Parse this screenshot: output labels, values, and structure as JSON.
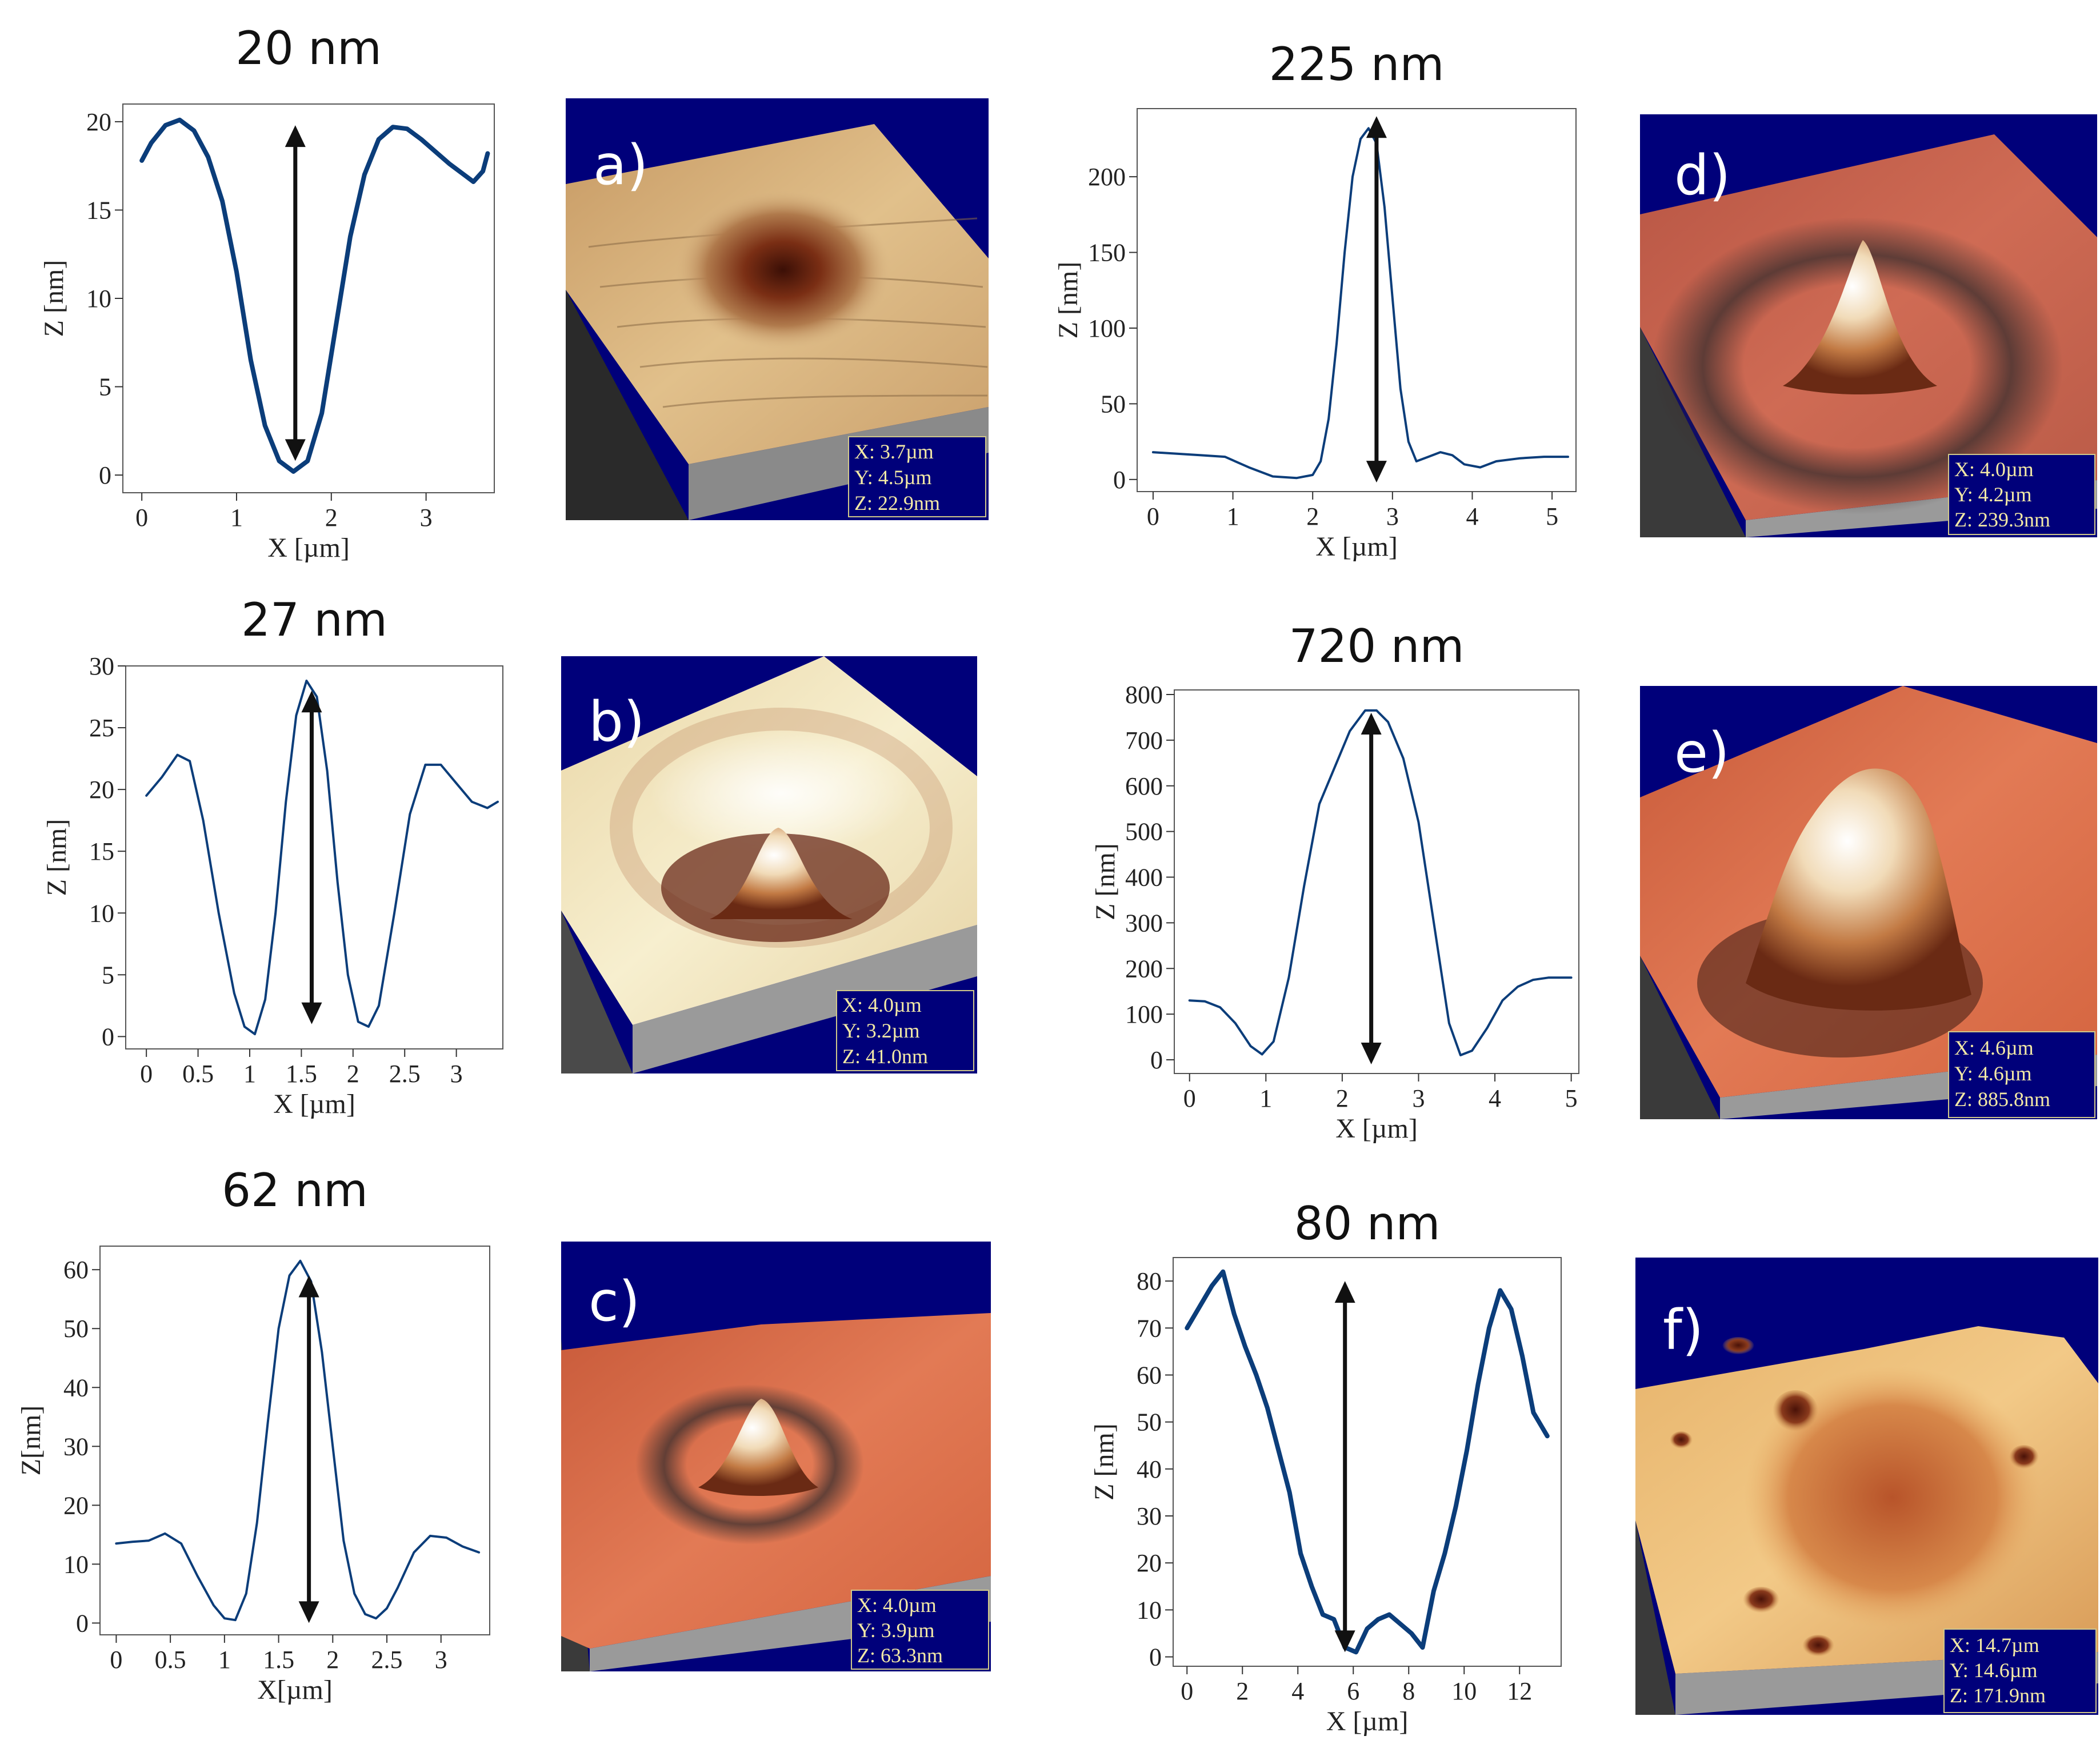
{
  "colors": {
    "curve": "#0b3d7a",
    "arrow": "#111111",
    "panel_bg": "#00007a",
    "frame": "#555555"
  },
  "chart_data": [
    {
      "type": "line",
      "title": "20 nm",
      "xlabel": "X [µm]",
      "ylabel": "Z [nm]",
      "xlim": [
        -0.2,
        3.72
      ],
      "ylim": [
        -1,
        21
      ],
      "xticks": [
        0,
        1,
        2,
        3
      ],
      "xtick_labels": [
        "0",
        "1",
        "2",
        "3"
      ],
      "yticks": [
        0,
        5,
        10,
        15,
        20
      ],
      "ytick_labels": [
        "0",
        "5",
        "10",
        "15",
        "20"
      ],
      "x": [
        0,
        0.1,
        0.25,
        0.4,
        0.55,
        0.7,
        0.85,
        1.0,
        1.15,
        1.3,
        1.45,
        1.6,
        1.75,
        1.9,
        2.05,
        2.2,
        2.35,
        2.5,
        2.65,
        2.8,
        2.95,
        3.1,
        3.25,
        3.4,
        3.5,
        3.6,
        3.65
      ],
      "y": [
        17.8,
        18.8,
        19.8,
        20.1,
        19.5,
        18.0,
        15.5,
        11.5,
        6.5,
        2.8,
        0.8,
        0.2,
        0.8,
        3.5,
        8.5,
        13.5,
        17.0,
        19.0,
        19.7,
        19.6,
        19.0,
        18.3,
        17.6,
        17.0,
        16.6,
        17.2,
        18.2
      ],
      "arrow": {
        "x": 1.62,
        "y_top": 19.8,
        "y_bottom": 0.8,
        "double": true
      },
      "stroke_width": 8
    },
    {
      "type": "line",
      "title": "27 nm",
      "xlabel": "X [µm]",
      "ylabel": "Z [nm]",
      "xlim": [
        -0.2,
        3.45
      ],
      "ylim": [
        -1,
        30
      ],
      "xticks": [
        0,
        0.5,
        1,
        1.5,
        2,
        2.5,
        3
      ],
      "xtick_labels": [
        "0",
        "0.5",
        "1",
        "1.5",
        "2",
        "2.5",
        "3"
      ],
      "yticks": [
        0,
        5,
        10,
        15,
        20,
        25,
        30
      ],
      "ytick_labels": [
        "0",
        "5",
        "10",
        "15",
        "20",
        "25",
        "30"
      ],
      "x": [
        0,
        0.15,
        0.3,
        0.42,
        0.55,
        0.7,
        0.85,
        0.95,
        1.05,
        1.15,
        1.25,
        1.35,
        1.45,
        1.55,
        1.65,
        1.75,
        1.85,
        1.95,
        2.05,
        2.15,
        2.25,
        2.4,
        2.55,
        2.7,
        2.85,
        3.0,
        3.15,
        3.3,
        3.4
      ],
      "y": [
        19.5,
        21.0,
        22.8,
        22.3,
        17.5,
        10.0,
        3.5,
        0.8,
        0.2,
        3.0,
        10.0,
        19.0,
        26.0,
        28.8,
        27.5,
        21.5,
        12.5,
        5.0,
        1.2,
        0.8,
        2.5,
        10.0,
        18.0,
        22.0,
        22.0,
        20.5,
        19.0,
        18.5,
        19.0
      ],
      "arrow": {
        "x": 1.6,
        "y_top": 28.0,
        "y_bottom": 1.0,
        "double": true
      },
      "stroke_width": 4
    },
    {
      "type": "line",
      "title": "62 nm",
      "xlabel": "X[µm]",
      "ylabel": "Z[nm]",
      "xlim": [
        -0.15,
        3.45
      ],
      "ylim": [
        -2,
        64
      ],
      "xticks": [
        0,
        0.5,
        1,
        1.5,
        2,
        2.5,
        3
      ],
      "xtick_labels": [
        "0",
        "0.5",
        "1",
        "1.5",
        "2",
        "2.5",
        "3"
      ],
      "yticks": [
        0,
        10,
        20,
        30,
        40,
        50,
        60
      ],
      "ytick_labels": [
        "0",
        "10",
        "20",
        "30",
        "40",
        "50",
        "60"
      ],
      "x": [
        0,
        0.15,
        0.3,
        0.45,
        0.6,
        0.75,
        0.9,
        1.0,
        1.1,
        1.2,
        1.3,
        1.4,
        1.5,
        1.6,
        1.7,
        1.8,
        1.9,
        2.0,
        2.1,
        2.2,
        2.3,
        2.4,
        2.5,
        2.6,
        2.75,
        2.9,
        3.05,
        3.2,
        3.35
      ],
      "y": [
        13.5,
        13.8,
        14.0,
        15.2,
        13.5,
        8.0,
        3.0,
        0.8,
        0.5,
        5.0,
        17.0,
        34.0,
        50.0,
        59.0,
        61.5,
        58.0,
        46.0,
        30.0,
        14.0,
        5.0,
        1.5,
        0.8,
        2.5,
        6.0,
        12.0,
        14.8,
        14.5,
        13.0,
        12.0
      ],
      "arrow": {
        "x": 1.78,
        "y_top": 59.0,
        "y_bottom": 0.0,
        "double": true
      },
      "stroke_width": 4
    },
    {
      "type": "line",
      "title": "225 nm",
      "xlabel": "X [µm]",
      "ylabel": "Z [nm]",
      "xlim": [
        -0.2,
        5.3
      ],
      "ylim": [
        -8,
        245
      ],
      "xticks": [
        0,
        1,
        2,
        3,
        4,
        5
      ],
      "xtick_labels": [
        "0",
        "1",
        "2",
        "3",
        "4",
        "5"
      ],
      "yticks": [
        0,
        50,
        100,
        150,
        200
      ],
      "ytick_labels": [
        "0",
        "50",
        "100",
        "150",
        "200"
      ],
      "x": [
        0,
        0.3,
        0.6,
        0.9,
        1.2,
        1.5,
        1.8,
        2.0,
        2.1,
        2.2,
        2.3,
        2.4,
        2.5,
        2.6,
        2.7,
        2.8,
        2.9,
        3.0,
        3.1,
        3.2,
        3.3,
        3.45,
        3.6,
        3.75,
        3.9,
        4.1,
        4.3,
        4.6,
        4.9,
        5.2
      ],
      "y": [
        18,
        17,
        16,
        15,
        8,
        2,
        1,
        3,
        12,
        40,
        90,
        150,
        200,
        225,
        232,
        222,
        180,
        120,
        60,
        25,
        12,
        15,
        18,
        16,
        10,
        8,
        12,
        14,
        15,
        15
      ],
      "arrow": {
        "x": 2.8,
        "y_top": 240,
        "y_bottom": -2,
        "double": true
      },
      "stroke_width": 4
    },
    {
      "type": "line",
      "title": "720 nm",
      "xlabel": "X [µm]",
      "ylabel": "Z [nm]",
      "xlim": [
        -0.2,
        5.1
      ],
      "ylim": [
        -30,
        810
      ],
      "xticks": [
        0,
        1,
        2,
        3,
        4,
        5
      ],
      "xtick_labels": [
        "0",
        "1",
        "2",
        "3",
        "4",
        "5"
      ],
      "yticks": [
        0,
        100,
        200,
        300,
        400,
        500,
        600,
        700,
        800
      ],
      "ytick_labels": [
        "0",
        "100",
        "200",
        "300",
        "400",
        "500",
        "600",
        "700",
        "800"
      ],
      "x": [
        0,
        0.2,
        0.4,
        0.6,
        0.8,
        0.95,
        1.1,
        1.3,
        1.5,
        1.7,
        1.9,
        2.1,
        2.3,
        2.45,
        2.6,
        2.8,
        3.0,
        3.2,
        3.4,
        3.55,
        3.7,
        3.9,
        4.1,
        4.3,
        4.5,
        4.7,
        4.9,
        5.0
      ],
      "y": [
        130,
        128,
        115,
        80,
        30,
        12,
        40,
        180,
        380,
        560,
        640,
        720,
        765,
        765,
        740,
        660,
        520,
        300,
        80,
        10,
        20,
        70,
        130,
        160,
        175,
        180,
        180,
        180
      ],
      "arrow": {
        "x": 2.38,
        "y_top": 760,
        "y_bottom": -10,
        "double": true
      },
      "stroke_width": 4
    },
    {
      "type": "line",
      "title": "80 nm",
      "xlabel": "X [µm]",
      "ylabel": "Z [nm]",
      "xlim": [
        -0.5,
        13.5
      ],
      "ylim": [
        -2,
        85
      ],
      "xticks": [
        0,
        2,
        4,
        6,
        8,
        10,
        12
      ],
      "xtick_labels": [
        "0",
        "2",
        "4",
        "6",
        "8",
        "10",
        "12"
      ],
      "yticks": [
        0,
        10,
        20,
        30,
        40,
        50,
        60,
        70,
        80
      ],
      "ytick_labels": [
        "0",
        "10",
        "20",
        "30",
        "40",
        "50",
        "60",
        "70",
        "80"
      ],
      "x": [
        0,
        0.5,
        0.9,
        1.3,
        1.7,
        2.1,
        2.5,
        2.9,
        3.3,
        3.7,
        4.1,
        4.5,
        4.9,
        5.3,
        5.7,
        6.1,
        6.5,
        6.9,
        7.3,
        7.7,
        8.1,
        8.5,
        8.9,
        9.3,
        9.7,
        10.1,
        10.5,
        10.9,
        11.3,
        11.7,
        12.1,
        12.5,
        12.8,
        13.0
      ],
      "y": [
        70,
        75,
        79,
        82,
        73,
        66,
        60,
        53,
        44,
        35,
        22,
        15,
        9,
        8,
        2,
        1,
        6,
        8,
        9,
        7,
        5,
        2,
        14,
        22,
        32,
        44,
        58,
        70,
        78,
        74,
        64,
        52,
        49,
        47
      ],
      "arrow": {
        "x": 5.7,
        "y_top": 80,
        "y_bottom": 1,
        "double": true
      },
      "stroke_width": 8
    }
  ],
  "panels": [
    {
      "letter": "a)",
      "x": "X: 3.7µm",
      "y": "Y: 4.5µm",
      "z": "Z: 22.9nm"
    },
    {
      "letter": "b)",
      "x": "X: 4.0µm",
      "y": "Y: 3.2µm",
      "z": "Z: 41.0nm"
    },
    {
      "letter": "c)",
      "x": "X: 4.0µm",
      "y": "Y: 3.9µm",
      "z": "Z: 63.3nm"
    },
    {
      "letter": "d)",
      "x": "X: 4.0µm",
      "y": "Y: 4.2µm",
      "z": "Z: 239.3nm"
    },
    {
      "letter": "e)",
      "x": "X: 4.6µm",
      "y": "Y: 4.6µm",
      "z": "Z: 885.8nm"
    },
    {
      "letter": "f)",
      "x": "X: 14.7µm",
      "y": "Y: 14.6µm",
      "z": "Z: 171.9nm"
    }
  ]
}
